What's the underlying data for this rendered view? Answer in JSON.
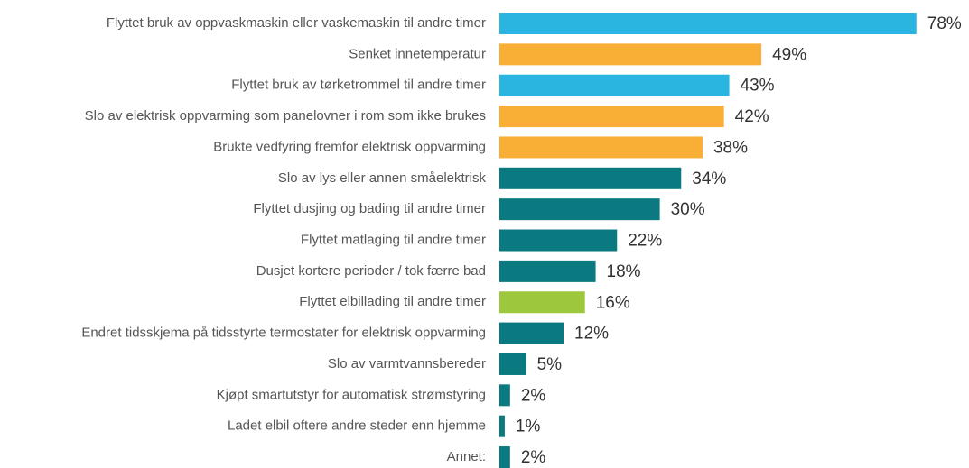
{
  "chart_data": {
    "type": "bar",
    "orientation": "horizontal",
    "categories": [
      "Flyttet bruk av oppvaskmaskin eller vaskemaskin til andre timer",
      "Senket innetemperatur",
      "Flyttet bruk av tørketrommel til andre timer",
      "Slo av elektrisk oppvarming som panelovner i rom som ikke brukes",
      "Brukte vedfyring fremfor elektrisk oppvarming",
      "Slo av lys eller annen småelektrisk",
      "Flyttet dusjing og bading til andre timer",
      "Flyttet matlaging til andre timer",
      "Dusjet kortere perioder / tok færre bad",
      "Flyttet elbillading til andre timer",
      "Endret tidsskjema på tidsstyrte termostater for elektrisk oppvarming",
      "Slo av varmtvannsbereder",
      "Kjøpt smartutstyr for automatisk strømstyring",
      "Ladet elbil oftere andre steder enn hjemme",
      "Annet:"
    ],
    "values": [
      78,
      49,
      43,
      42,
      38,
      34,
      30,
      22,
      18,
      16,
      12,
      5,
      2,
      1,
      2
    ],
    "value_labels": [
      "78%",
      "49%",
      "43%",
      "42%",
      "38%",
      "34%",
      "30%",
      "22%",
      "18%",
      "16%",
      "12%",
      "5%",
      "2%",
      "1%",
      "2%"
    ],
    "colors": [
      "#29b5e0",
      "#f9ae35",
      "#29b5e0",
      "#f9ae35",
      "#f9ae35",
      "#0a7a80",
      "#0a7a80",
      "#0a7a80",
      "#0a7a80",
      "#9dc83d",
      "#0a7a80",
      "#0a7a80",
      "#0a7a80",
      "#0a7a80",
      "#0a7a80"
    ]
  }
}
